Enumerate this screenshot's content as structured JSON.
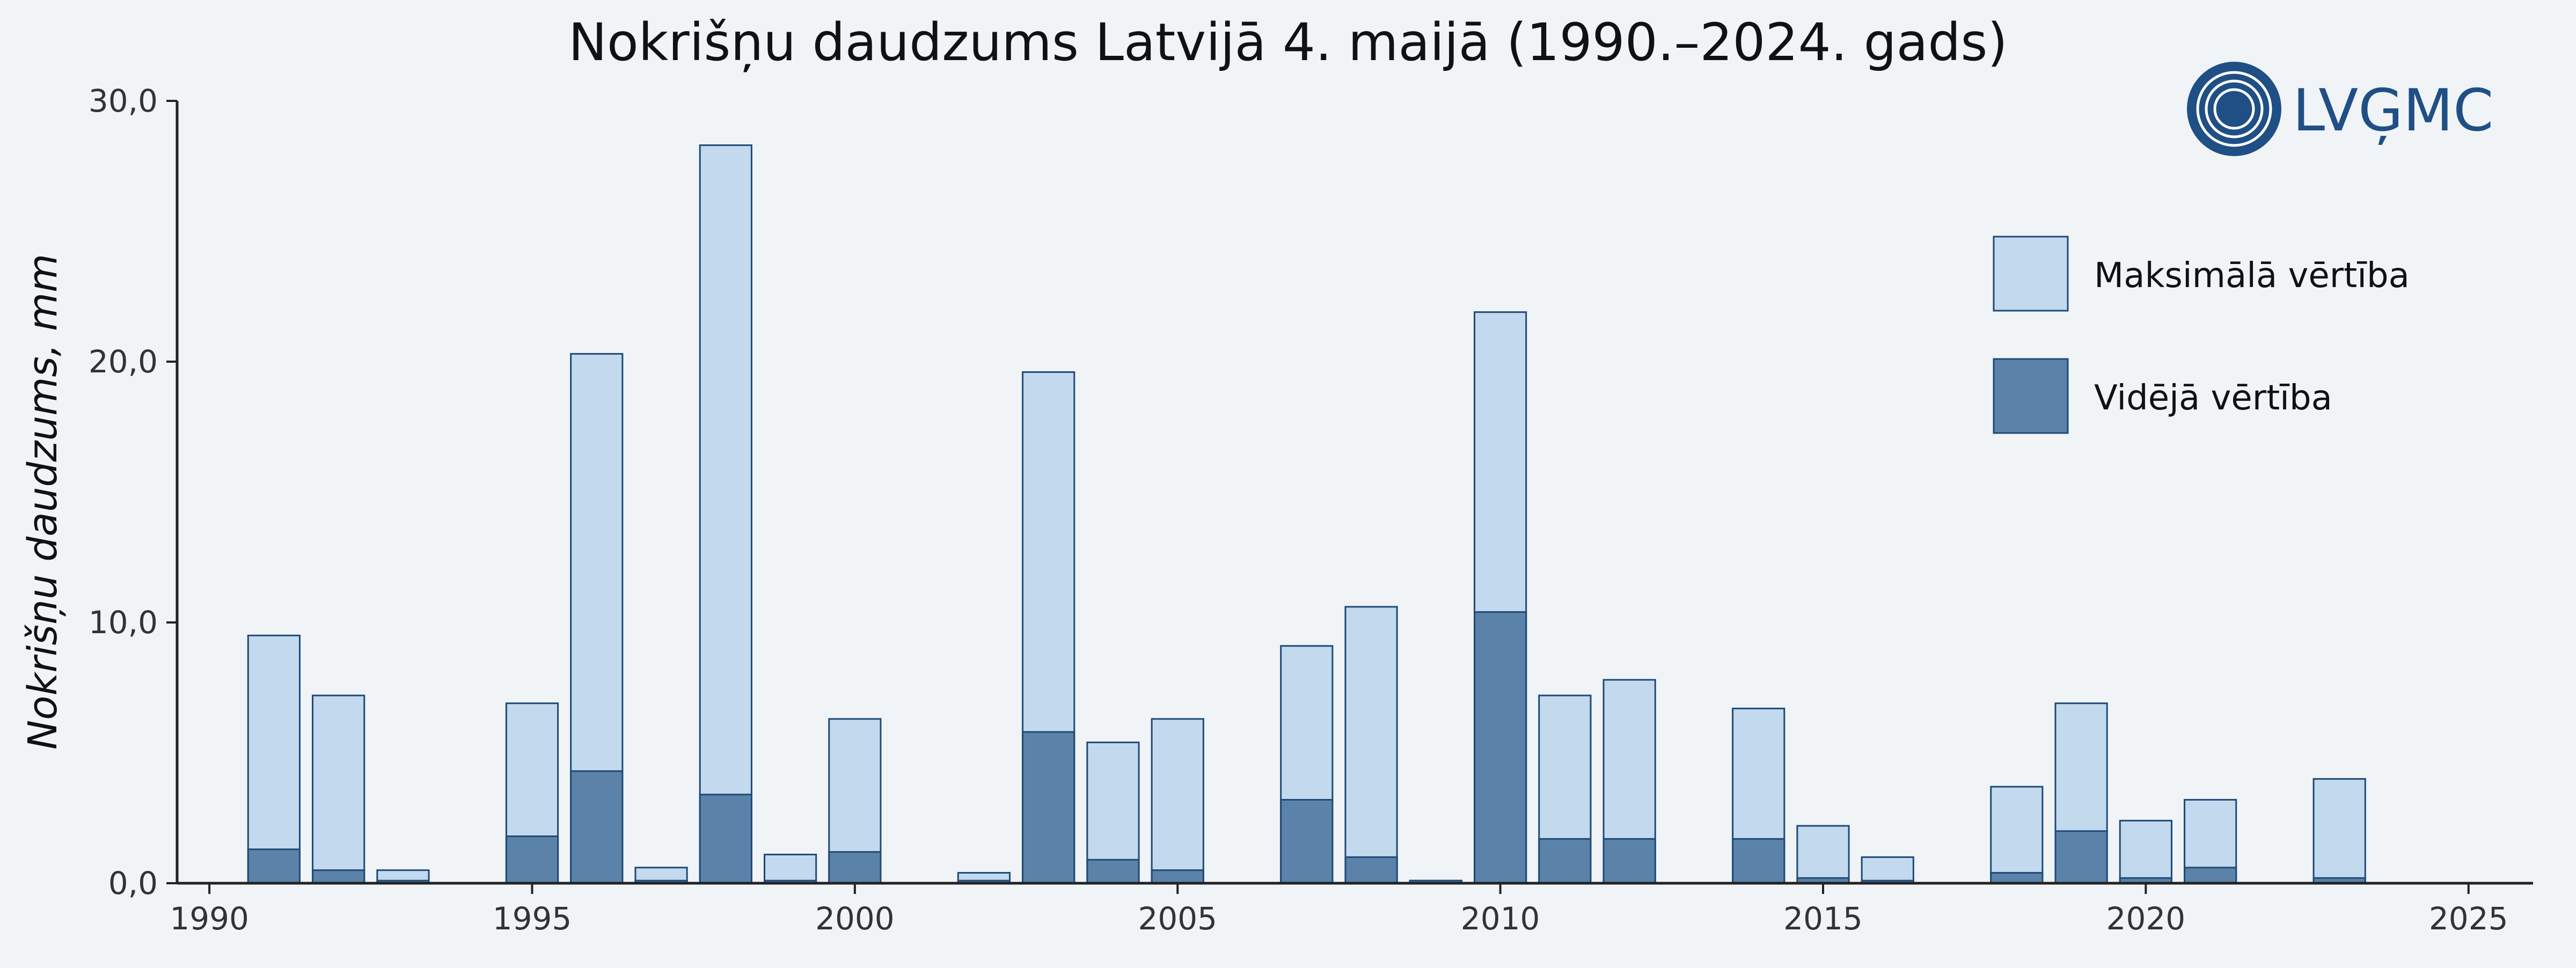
{
  "logo": {
    "text": "LVĢMC"
  },
  "chart_data": {
    "type": "bar",
    "title": "Nokrišņu daudzums Latvijā 4. maijā (1990.–2024. gads)",
    "xlabel": "",
    "ylabel": "Nokrišņu daudzums, mm",
    "xlim": [
      1989.5,
      2026
    ],
    "ylim": [
      0,
      30
    ],
    "x_ticks": [
      1990,
      1995,
      2000,
      2005,
      2010,
      2015,
      2020,
      2025
    ],
    "x_tick_labels": [
      "1990",
      "1995",
      "2000",
      "2005",
      "2010",
      "2015",
      "2020",
      "2025"
    ],
    "y_ticks": [
      0,
      10,
      20,
      30
    ],
    "y_tick_labels": [
      "0,0",
      "10,0",
      "20,0",
      "30,0"
    ],
    "grid": false,
    "legend_position": "top-right",
    "colors": {
      "max": "#c3d9ed",
      "mean": "#5b82a8",
      "edge": "#1f4a78",
      "axis": "#222222",
      "logo": "#1f4f85"
    },
    "years": [
      1990,
      1991,
      1992,
      1993,
      1994,
      1995,
      1996,
      1997,
      1998,
      1999,
      2000,
      2001,
      2002,
      2003,
      2004,
      2005,
      2006,
      2007,
      2008,
      2009,
      2010,
      2011,
      2012,
      2013,
      2014,
      2015,
      2016,
      2017,
      2018,
      2019,
      2020,
      2021,
      2022,
      2023,
      2024
    ],
    "series": [
      {
        "name": "Maksimālā vērtība",
        "values": [
          0,
          9.5,
          7.2,
          0.5,
          0,
          6.9,
          20.3,
          0.6,
          28.3,
          1.1,
          6.3,
          0,
          0.4,
          19.6,
          5.4,
          6.3,
          0,
          9.1,
          10.6,
          0.1,
          21.9,
          7.2,
          7.8,
          0,
          6.7,
          2.2,
          1.0,
          0,
          3.7,
          6.9,
          2.4,
          3.2,
          0,
          4.0,
          0
        ]
      },
      {
        "name": "Vidējā vērtība",
        "values": [
          0,
          1.3,
          0.5,
          0.1,
          0,
          1.8,
          4.3,
          0.1,
          3.4,
          0.1,
          1.2,
          0,
          0.1,
          5.8,
          0.9,
          0.5,
          0,
          3.2,
          1.0,
          0.1,
          10.4,
          1.7,
          1.7,
          0,
          1.7,
          0.2,
          0.1,
          0,
          0.4,
          2.0,
          0.2,
          0.6,
          0,
          0.2,
          0
        ]
      }
    ]
  }
}
